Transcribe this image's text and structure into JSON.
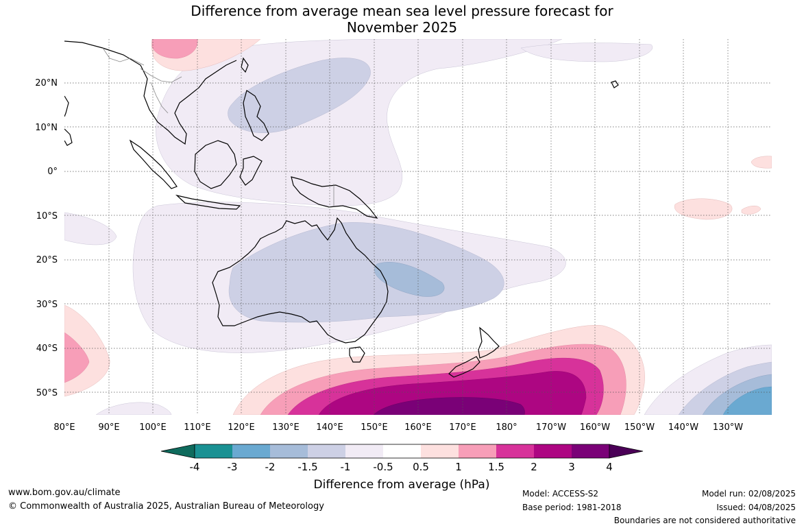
{
  "title_line1": "Difference from average mean sea level pressure forecast for",
  "title_line2": "November 2025",
  "lon_labels": [
    "80°E",
    "90°E",
    "100°E",
    "110°E",
    "120°E",
    "130°E",
    "140°E",
    "150°E",
    "160°E",
    "170°E",
    "180°",
    "170°W",
    "160°W",
    "150°W",
    "140°W",
    "130°W"
  ],
  "lat_labels": [
    "20°N",
    "10°N",
    "0°",
    "10°S",
    "20°S",
    "30°S",
    "40°S",
    "50°S"
  ],
  "colorbar": {
    "title": "Difference from average (hPa)",
    "ticks": [
      "-4",
      "-3",
      "-2",
      "-1.5",
      "-1",
      "-0.5",
      "0.5",
      "1",
      "1.5",
      "2",
      "3",
      "4"
    ],
    "colors": [
      "#0f6b5d",
      "#1a9193",
      "#6aa9d1",
      "#a6bcd9",
      "#cdd0e5",
      "#f1ebf5",
      "#ffffff",
      "#fde0df",
      "#f79eb8",
      "#d7329a",
      "#ad0682",
      "#7a0177",
      "#4b0057"
    ]
  },
  "footer": {
    "website": "www.bom.gov.au/climate",
    "copyright": "© Commonwealth of Australia 2025, Australian Bureau of Meteorology",
    "model": "Model: ACCESS-S2",
    "base_period": "Base period: 1981-2018",
    "model_run": "Model run: 02/08/2025",
    "issued": "Issued: 04/08/2025",
    "disclaimer": "Boundaries are not considered authoritative"
  }
}
